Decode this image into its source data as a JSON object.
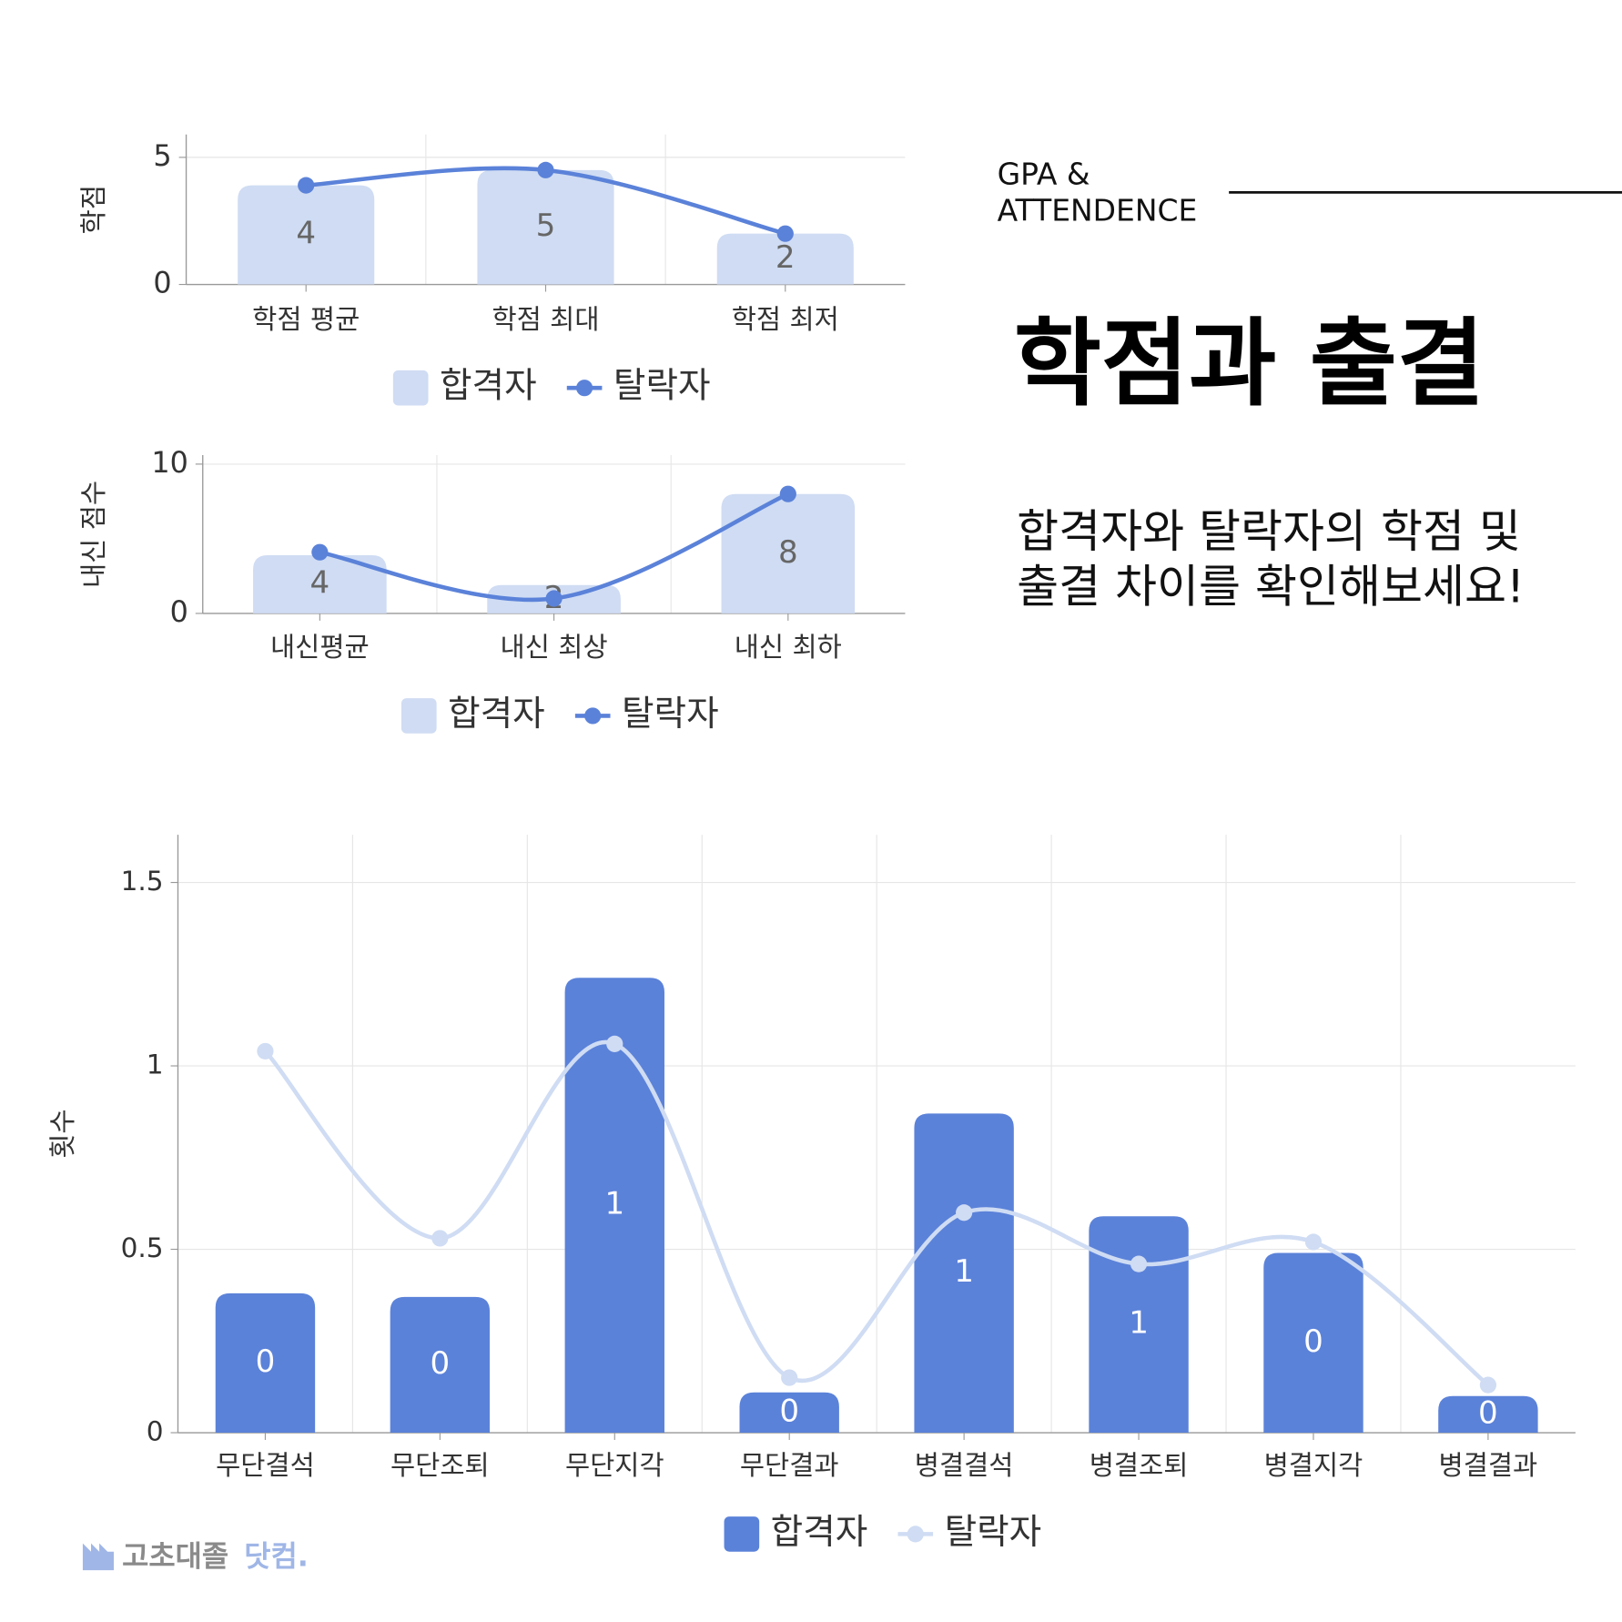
{
  "header": {
    "kicker": [
      "GPA &",
      "ATTENDENCE"
    ],
    "title": "학점과 출결",
    "subtitle": [
      "합격자와 탈락자의 학점 및",
      "출결 차이를 확인해보세요!"
    ]
  },
  "chart_data": [
    {
      "type": "combo",
      "y_label": "학점",
      "categories": [
        "학점 평균",
        "학점 최대",
        "학점 최저"
      ],
      "series": [
        {
          "name": "합격자",
          "type": "bar",
          "color": "#cfdcf3",
          "values": [
            3.9,
            4.5,
            2.0
          ],
          "value_labels": [
            "4",
            "5",
            "2"
          ]
        },
        {
          "name": "탈락자",
          "type": "line",
          "color": "#5b82d9",
          "values": [
            3.9,
            4.5,
            2.0
          ]
        }
      ],
      "ylim": [
        0,
        5.9
      ],
      "yticks": [
        0,
        5
      ],
      "grid": true
    },
    {
      "type": "combo",
      "y_label": "내신 점수",
      "categories": [
        "내신평균",
        "내신 최상",
        "내신 최하"
      ],
      "series": [
        {
          "name": "합격자",
          "type": "bar",
          "color": "#cfdcf3",
          "values": [
            3.9,
            1.9,
            8.0
          ],
          "value_labels": [
            "4",
            "2",
            "8"
          ]
        },
        {
          "name": "탈락자",
          "type": "line",
          "color": "#5b82d9",
          "values": [
            4.1,
            1.0,
            8.0
          ]
        }
      ],
      "ylim": [
        0,
        10.6
      ],
      "yticks": [
        0,
        10
      ],
      "grid": true
    },
    {
      "type": "combo",
      "y_label": "횟수",
      "categories": [
        "무단결석",
        "무단조퇴",
        "무단지각",
        "무단결과",
        "병결결석",
        "병결조퇴",
        "병결지각",
        "병결결과"
      ],
      "series": [
        {
          "name": "합격자",
          "type": "bar",
          "color": "#5b82d9",
          "values": [
            0.38,
            0.37,
            1.24,
            0.11,
            0.87,
            0.59,
            0.49,
            0.1
          ],
          "value_labels": [
            "0",
            "0",
            "1",
            "0",
            "1",
            "1",
            "0",
            "0"
          ]
        },
        {
          "name": "탈락자",
          "type": "line",
          "color": "#cfdcf3",
          "values": [
            1.04,
            0.53,
            1.06,
            0.15,
            0.6,
            0.46,
            0.52,
            0.13
          ]
        }
      ],
      "ylim": [
        0,
        1.63
      ],
      "yticks": [
        0,
        0.5,
        1,
        1.5
      ],
      "grid": true
    }
  ],
  "logo": {
    "name": "고초대졸",
    "suffix": "닷컴."
  }
}
